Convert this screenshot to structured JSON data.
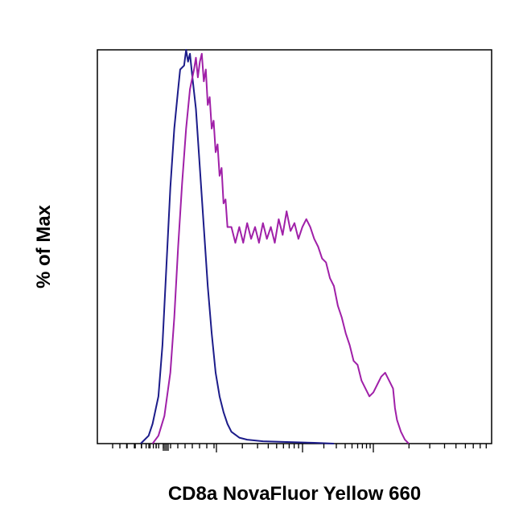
{
  "chart_data": {
    "type": "line",
    "title": "",
    "xlabel": "CD8a NovaFluor Yellow 660",
    "ylabel": "% of Max",
    "x_scale": "log",
    "xlim": [
      0,
      100
    ],
    "ylim": [
      0,
      100
    ],
    "grid": false,
    "series": [
      {
        "color": "#1c1c8a",
        "points": [
          [
            11,
            0
          ],
          [
            13,
            2
          ],
          [
            14,
            5
          ],
          [
            15.5,
            12
          ],
          [
            16.5,
            25
          ],
          [
            17.5,
            45
          ],
          [
            18.5,
            65
          ],
          [
            19.5,
            80
          ],
          [
            20.5,
            90
          ],
          [
            21,
            95
          ],
          [
            22,
            96
          ],
          [
            22.5,
            100
          ],
          [
            23,
            97
          ],
          [
            23.5,
            99
          ],
          [
            24,
            94
          ],
          [
            25,
            85
          ],
          [
            26,
            70
          ],
          [
            27,
            55
          ],
          [
            28,
            40
          ],
          [
            29,
            28
          ],
          [
            30,
            18
          ],
          [
            31,
            12
          ],
          [
            32,
            8
          ],
          [
            33,
            5
          ],
          [
            34,
            3
          ],
          [
            36,
            1.5
          ],
          [
            38,
            1
          ],
          [
            42,
            0.6
          ],
          [
            48,
            0.4
          ],
          [
            55,
            0.2
          ],
          [
            60,
            0
          ]
        ]
      },
      {
        "color": "#a020a8",
        "points": [
          [
            14,
            0
          ],
          [
            15.5,
            2
          ],
          [
            17,
            7
          ],
          [
            18.5,
            18
          ],
          [
            19.5,
            32
          ],
          [
            20.5,
            50
          ],
          [
            21.5,
            66
          ],
          [
            22.5,
            80
          ],
          [
            23.5,
            90
          ],
          [
            24.5,
            95
          ],
          [
            25,
            98
          ],
          [
            25.5,
            93
          ],
          [
            26,
            97
          ],
          [
            26.5,
            99
          ],
          [
            27,
            92
          ],
          [
            27.5,
            95
          ],
          [
            28,
            86
          ],
          [
            28.5,
            88
          ],
          [
            29,
            80
          ],
          [
            29.5,
            82
          ],
          [
            30,
            74
          ],
          [
            30.5,
            76
          ],
          [
            31,
            68
          ],
          [
            31.5,
            70
          ],
          [
            32,
            61
          ],
          [
            32.5,
            62
          ],
          [
            33,
            55
          ],
          [
            34,
            55
          ],
          [
            35,
            51
          ],
          [
            36,
            55
          ],
          [
            37,
            51
          ],
          [
            38,
            56
          ],
          [
            39,
            52
          ],
          [
            40,
            55
          ],
          [
            41,
            51
          ],
          [
            42,
            56
          ],
          [
            43,
            52
          ],
          [
            44,
            55
          ],
          [
            45,
            51
          ],
          [
            46,
            57
          ],
          [
            47,
            53
          ],
          [
            48,
            59
          ],
          [
            49,
            54
          ],
          [
            50,
            56
          ],
          [
            51,
            52
          ],
          [
            52,
            55
          ],
          [
            53,
            57
          ],
          [
            54,
            55
          ],
          [
            55,
            52
          ],
          [
            56,
            50
          ],
          [
            57,
            47
          ],
          [
            58,
            46
          ],
          [
            59,
            42
          ],
          [
            60,
            40
          ],
          [
            61,
            35
          ],
          [
            62,
            32
          ],
          [
            63,
            28
          ],
          [
            64,
            25
          ],
          [
            65,
            21
          ],
          [
            66,
            20
          ],
          [
            67,
            16
          ],
          [
            68,
            14
          ],
          [
            69,
            12
          ],
          [
            70,
            13
          ],
          [
            71,
            15
          ],
          [
            72,
            17
          ],
          [
            73,
            18
          ],
          [
            74,
            16
          ],
          [
            75,
            14
          ],
          [
            75.5,
            9
          ],
          [
            76,
            6
          ],
          [
            77,
            3
          ],
          [
            78,
            1
          ],
          [
            79,
            0
          ]
        ]
      }
    ]
  }
}
